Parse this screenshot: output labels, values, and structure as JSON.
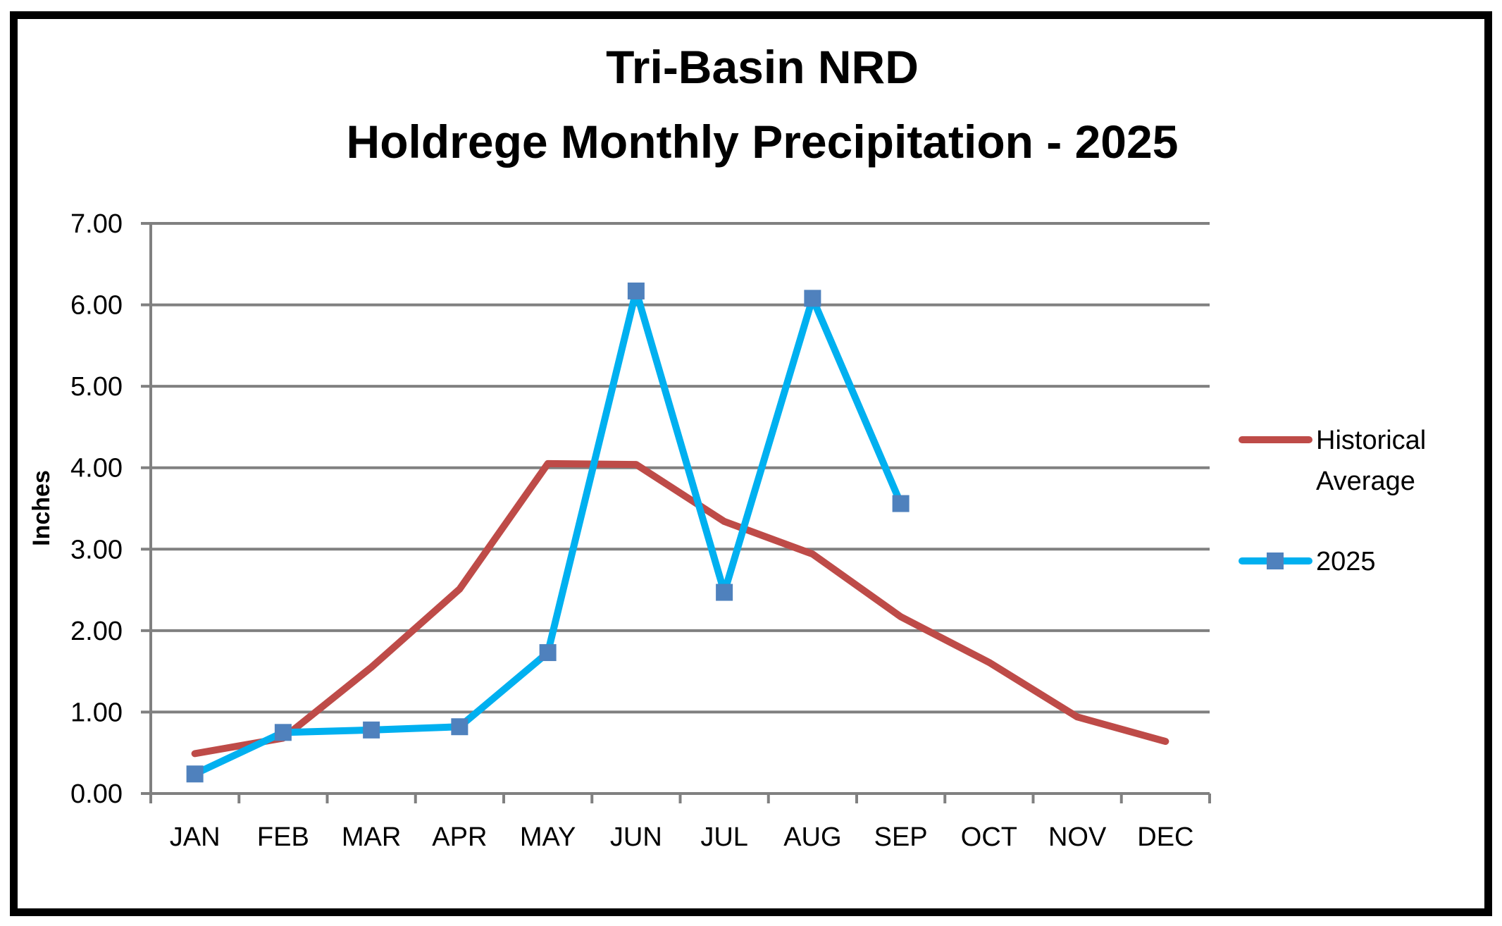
{
  "chart_data": {
    "type": "line",
    "title": "Tri-Basin NRD",
    "subtitle": "Holdrege Monthly Precipitation - 2025",
    "xlabel": "",
    "ylabel": "Inches",
    "ylim": [
      0,
      7
    ],
    "yticks": [
      "0.00",
      "1.00",
      "2.00",
      "3.00",
      "4.00",
      "5.00",
      "6.00",
      "7.00"
    ],
    "grid": true,
    "legend": "right",
    "categories": [
      "JAN",
      "FEB",
      "MAR",
      "APR",
      "MAY",
      "JUN",
      "JUL",
      "AUG",
      "SEP",
      "OCT",
      "NOV",
      "DEC"
    ],
    "series": [
      {
        "name": "Historical Average",
        "name_lines": [
          "Historical",
          "Average"
        ],
        "color": "#be4b48",
        "marker": "none",
        "values": [
          0.49,
          0.68,
          1.55,
          2.51,
          4.05,
          4.04,
          3.34,
          2.94,
          2.17,
          1.61,
          0.94,
          0.64
        ]
      },
      {
        "name": "2025",
        "name_lines": [
          "2025"
        ],
        "color": "#00b0f0",
        "marker": "square",
        "marker_color": "#4f81bd",
        "values": [
          0.24,
          0.75,
          0.78,
          0.82,
          1.73,
          6.17,
          2.47,
          6.08,
          3.56,
          null,
          null,
          null
        ]
      }
    ]
  },
  "colors": {
    "grid": "#808080",
    "frame": "#000000",
    "text": "#000000"
  }
}
